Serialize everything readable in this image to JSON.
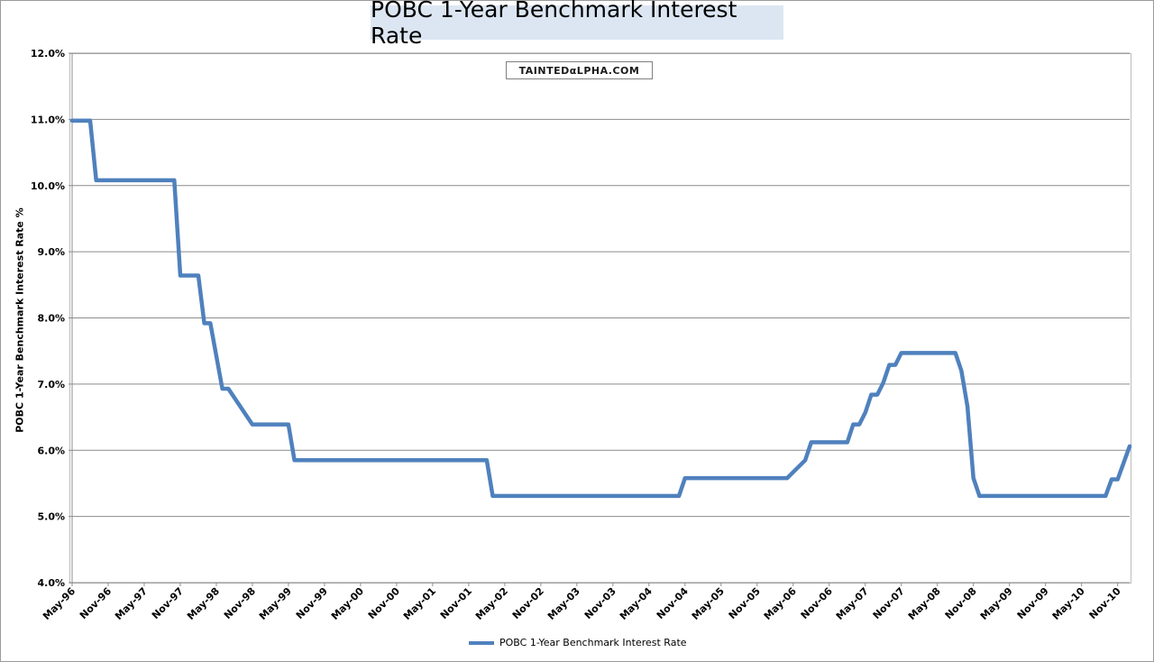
{
  "chart_data": {
    "type": "line",
    "title": "POBC 1-Year Benchmark Interest Rate",
    "ylabel": "POBC 1-Year Benchmark Interest Rate %",
    "xlabel": "",
    "ylim": [
      4.0,
      12.0
    ],
    "yticks": [
      "4.0%",
      "5.0%",
      "6.0%",
      "7.0%",
      "8.0%",
      "9.0%",
      "10.0%",
      "11.0%",
      "12.0%"
    ],
    "xticks": [
      "May-96",
      "Nov-96",
      "May-97",
      "Nov-97",
      "May-98",
      "Nov-98",
      "May-99",
      "Nov-99",
      "May-00",
      "Nov-00",
      "May-01",
      "Nov-01",
      "May-02",
      "Nov-02",
      "May-03",
      "Nov-03",
      "May-04",
      "Nov-04",
      "May-05",
      "Nov-05",
      "May-06",
      "Nov-06",
      "May-07",
      "Nov-07",
      "May-08",
      "Nov-08",
      "May-09",
      "Nov-09",
      "May-10",
      "Nov-10"
    ],
    "grid": true,
    "legend_position": "bottom",
    "series": [
      {
        "name": "POBC 1-Year Benchmark Interest Rate",
        "color": "#4f81bd",
        "x": [
          "1996-05",
          "1996-07",
          "1996-08",
          "1996-09",
          "1997-09",
          "1997-10",
          "1997-11",
          "1998-02",
          "1998-03",
          "1998-04",
          "1998-06",
          "1998-07",
          "1998-11",
          "1998-12",
          "1999-05",
          "1999-06",
          "2001-11",
          "2002-02",
          "2002-03",
          "2004-09",
          "2004-10",
          "2004-11",
          "2006-03",
          "2006-04",
          "2006-07",
          "2006-08",
          "2007-02",
          "2007-03",
          "2007-04",
          "2007-05",
          "2007-06",
          "2007-07",
          "2007-08",
          "2007-09",
          "2007-10",
          "2007-11",
          "2007-12",
          "2008-08",
          "2008-09",
          "2008-10",
          "2008-11",
          "2008-12",
          "2010-09",
          "2010-10",
          "2010-11",
          "2011-01"
        ],
        "values": [
          10.98,
          10.98,
          10.98,
          10.08,
          10.08,
          10.08,
          8.64,
          8.64,
          7.92,
          7.92,
          6.93,
          6.93,
          6.39,
          6.39,
          6.39,
          5.85,
          5.85,
          5.85,
          5.31,
          5.31,
          5.31,
          5.58,
          5.58,
          5.58,
          5.85,
          6.12,
          6.12,
          6.39,
          6.39,
          6.57,
          6.84,
          6.84,
          7.02,
          7.29,
          7.29,
          7.47,
          7.47,
          7.47,
          7.2,
          6.66,
          5.58,
          5.31,
          5.31,
          5.56,
          5.56,
          6.06
        ]
      }
    ]
  },
  "watermark": {
    "text": "TAINTEDαLPHA.COM"
  },
  "legend": {
    "label": "POBC 1-Year Benchmark Interest Rate"
  }
}
